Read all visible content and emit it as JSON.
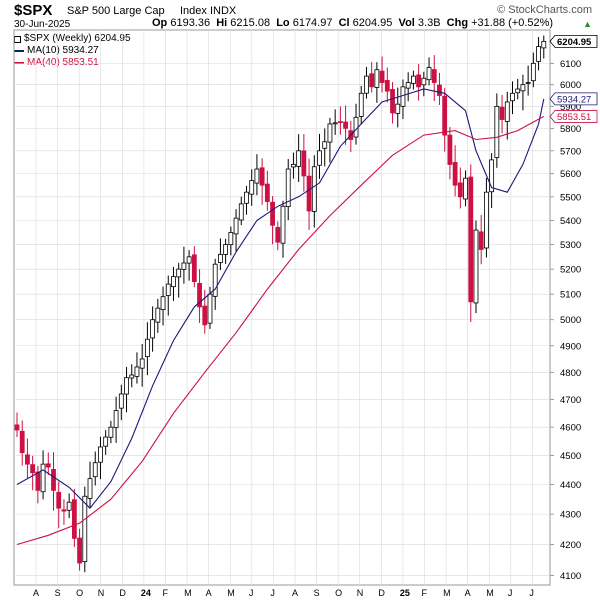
{
  "header": {
    "symbol": "$SPX",
    "company": "S&P 500 Large Cap",
    "exchange": "Index INDX",
    "brand": "© StockCharts.com",
    "date": "30-Jun-2025",
    "quote_fields": [
      {
        "label": "Op",
        "value": "6193.36"
      },
      {
        "label": "Hi",
        "value": "6215.08"
      },
      {
        "label": "Lo",
        "value": "6174.97"
      },
      {
        "label": "Cl",
        "value": "6204.95"
      },
      {
        "label": "Vol",
        "value": "3.3B"
      },
      {
        "label": "Chg",
        "value": "+31.88 (+0.52%)"
      }
    ],
    "change_arrow": "▲"
  },
  "legend": [
    {
      "label": "$SPX (Weekly) 6204.95",
      "kind": "candles"
    },
    {
      "label": "MA(10) 5934.27",
      "kind": "line",
      "color": "#1a1a7a"
    },
    {
      "label": "MA(40) 5853.51",
      "kind": "line",
      "color": "#cc1144"
    }
  ],
  "colors": {
    "up": "#000000",
    "down": "#cc1144",
    "ma10": "#1a1a7a",
    "ma40": "#cc1144",
    "grid": "#d9d9d9"
  },
  "chart_data": {
    "type": "candlestick",
    "title": "$SPX S&P 500 Large Cap Index INDX",
    "interval": "Weekly",
    "ylim": [
      4070,
      6260
    ],
    "y_ticks": [
      4100,
      4200,
      4300,
      4400,
      4500,
      4600,
      4700,
      4800,
      4900,
      5000,
      5100,
      5200,
      5300,
      5400,
      5500,
      5600,
      5700,
      5800,
      5900,
      6000,
      6100
    ],
    "y_scale": "log",
    "y_axis_side": "right",
    "grid": true,
    "x_ticks": [
      {
        "label": "A",
        "bold": false
      },
      {
        "label": "S",
        "bold": false
      },
      {
        "label": "O",
        "bold": false
      },
      {
        "label": "N",
        "bold": false
      },
      {
        "label": "D",
        "bold": false
      },
      {
        "label": "24",
        "bold": true
      },
      {
        "label": "F",
        "bold": false
      },
      {
        "label": "M",
        "bold": false
      },
      {
        "label": "A",
        "bold": false
      },
      {
        "label": "M",
        "bold": false
      },
      {
        "label": "J",
        "bold": false
      },
      {
        "label": "J",
        "bold": false
      },
      {
        "label": "A",
        "bold": false
      },
      {
        "label": "S",
        "bold": false
      },
      {
        "label": "O",
        "bold": false
      },
      {
        "label": "N",
        "bold": false
      },
      {
        "label": "D",
        "bold": false
      },
      {
        "label": "25",
        "bold": true
      },
      {
        "label": "F",
        "bold": false
      },
      {
        "label": "M",
        "bold": false
      },
      {
        "label": "A",
        "bold": false
      },
      {
        "label": "M",
        "bold": false
      },
      {
        "label": "J",
        "bold": false
      },
      {
        "label": "J",
        "bold": false
      }
    ],
    "close_path": [
      [
        0,
        4590
      ],
      [
        1,
        4510
      ],
      [
        2,
        4470
      ],
      [
        3,
        4440
      ],
      [
        4,
        4380
      ],
      [
        5,
        4470
      ],
      [
        6,
        4460
      ],
      [
        7,
        4380
      ],
      [
        8,
        4320
      ],
      [
        9,
        4310
      ],
      [
        10,
        4340
      ],
      [
        11,
        4220
      ],
      [
        12,
        4140
      ],
      [
        13,
        4360
      ],
      [
        14,
        4420
      ],
      [
        16,
        4530
      ],
      [
        18,
        4600
      ],
      [
        20,
        4720
      ],
      [
        21,
        4780
      ],
      [
        22,
        4790
      ],
      [
        24,
        4850
      ],
      [
        26,
        5000
      ],
      [
        28,
        5090
      ],
      [
        29,
        5140
      ],
      [
        31,
        5200
      ],
      [
        33,
        5250
      ],
      [
        34,
        5150
      ],
      [
        35,
        5050
      ],
      [
        36,
        4980
      ],
      [
        38,
        5220
      ],
      [
        40,
        5300
      ],
      [
        41,
        5350
      ],
      [
        43,
        5470
      ],
      [
        45,
        5570
      ],
      [
        46,
        5620
      ],
      [
        47,
        5550
      ],
      [
        48,
        5480
      ],
      [
        49,
        5380
      ],
      [
        50,
        5310
      ],
      [
        51,
        5460
      ],
      [
        52,
        5620
      ],
      [
        53,
        5640
      ],
      [
        54,
        5700
      ],
      [
        55,
        5590
      ],
      [
        56,
        5440
      ],
      [
        57,
        5630
      ],
      [
        58,
        5700
      ],
      [
        59,
        5740
      ],
      [
        60,
        5820
      ],
      [
        62,
        5830
      ],
      [
        63,
        5800
      ],
      [
        64,
        5750
      ],
      [
        65,
        5850
      ],
      [
        66,
        5960
      ],
      [
        67,
        6040
      ],
      [
        68,
        5990
      ],
      [
        69,
        6070
      ],
      [
        70,
        6010
      ],
      [
        71,
        5970
      ],
      [
        72,
        5870
      ],
      [
        73,
        5910
      ],
      [
        74,
        5990
      ],
      [
        75,
        6010
      ],
      [
        76,
        6040
      ],
      [
        77,
        5990
      ],
      [
        78,
        6030
      ],
      [
        79,
        6080
      ],
      [
        80,
        6010
      ],
      [
        81,
        5950
      ],
      [
        82,
        5770
      ],
      [
        83,
        5640
      ],
      [
        84,
        5550
      ],
      [
        85,
        5500
      ],
      [
        86,
        5580
      ],
      [
        87,
        5070
      ],
      [
        88,
        5360
      ],
      [
        89,
        5280
      ],
      [
        90,
        5520
      ],
      [
        91,
        5660
      ],
      [
        92,
        5900
      ],
      [
        93,
        5840
      ],
      [
        94,
        5920
      ],
      [
        95,
        5960
      ],
      [
        96,
        5980
      ],
      [
        97,
        6000
      ],
      [
        98,
        6010
      ],
      [
        99,
        6100
      ],
      [
        100,
        6180
      ],
      [
        101,
        6205
      ]
    ],
    "series": [
      {
        "name": "$SPX (Weekly)",
        "last_value": 6204.95
      },
      {
        "name": "MA(10)",
        "last_value": 5934.27,
        "points": [
          [
            0,
            4400
          ],
          [
            5,
            4450
          ],
          [
            10,
            4390
          ],
          [
            14,
            4320
          ],
          [
            18,
            4410
          ],
          [
            22,
            4560
          ],
          [
            26,
            4750
          ],
          [
            30,
            4920
          ],
          [
            34,
            5050
          ],
          [
            38,
            5120
          ],
          [
            42,
            5270
          ],
          [
            46,
            5400
          ],
          [
            50,
            5460
          ],
          [
            54,
            5500
          ],
          [
            58,
            5560
          ],
          [
            62,
            5720
          ],
          [
            66,
            5820
          ],
          [
            70,
            5920
          ],
          [
            74,
            5950
          ],
          [
            78,
            5980
          ],
          [
            82,
            5960
          ],
          [
            86,
            5880
          ],
          [
            88,
            5700
          ],
          [
            91,
            5540
          ],
          [
            94,
            5520
          ],
          [
            97,
            5640
          ],
          [
            100,
            5820
          ],
          [
            101,
            5934
          ]
        ]
      },
      {
        "name": "MA(40)",
        "last_value": 5853.51,
        "points": [
          [
            0,
            4200
          ],
          [
            6,
            4230
          ],
          [
            12,
            4270
          ],
          [
            18,
            4350
          ],
          [
            24,
            4480
          ],
          [
            30,
            4650
          ],
          [
            36,
            4800
          ],
          [
            42,
            4950
          ],
          [
            48,
            5120
          ],
          [
            54,
            5280
          ],
          [
            60,
            5420
          ],
          [
            66,
            5550
          ],
          [
            72,
            5680
          ],
          [
            78,
            5770
          ],
          [
            84,
            5790
          ],
          [
            88,
            5750
          ],
          [
            92,
            5760
          ],
          [
            96,
            5790
          ],
          [
            101,
            5854
          ]
        ]
      }
    ],
    "annotations": [
      {
        "text": "6204.95",
        "value": 6204.95,
        "style": "boxed-bold"
      },
      {
        "text": "5934.27",
        "value": 5934.27,
        "style": "boxed-blue"
      },
      {
        "text": "5853.51",
        "value": 5853.51,
        "style": "boxed-red"
      }
    ]
  }
}
